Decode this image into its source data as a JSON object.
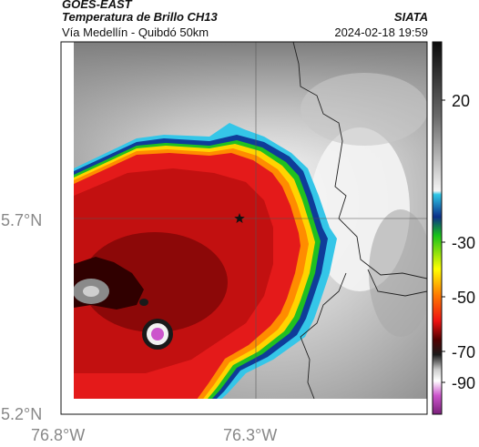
{
  "header": {
    "satellite": "GOES-EAST",
    "product": "Temperatura de Brillo CH13",
    "region": "Vía Medellín - Quibdó 50km",
    "agency": "SIATA",
    "timestamp": "2024-02-18 19:59"
  },
  "axes": {
    "lat_labels": [
      "5.7°N",
      "5.2°N"
    ],
    "lon_labels": [
      "76.8°W",
      "76.3°W"
    ]
  },
  "colorbar": {
    "tick_labels": [
      "20",
      "-30",
      "-50",
      "-70",
      "-90"
    ],
    "colors": [
      "#1a1a1a",
      "#ffffff",
      "#2ec7e6",
      "#0c2f8a",
      "#18c21a",
      "#ffff00",
      "#ff7a00",
      "#ee1212",
      "#500000",
      "#cc55cc"
    ]
  },
  "map": {
    "marker": "star-icon",
    "colors": {
      "core": "#c21010",
      "cold_ring": "#e41a1a",
      "warm_edge": "#ff8c00",
      "green_edge": "#20c020",
      "blue_edge": "#0f3c99",
      "cyan_edge": "#35c6e8"
    }
  }
}
